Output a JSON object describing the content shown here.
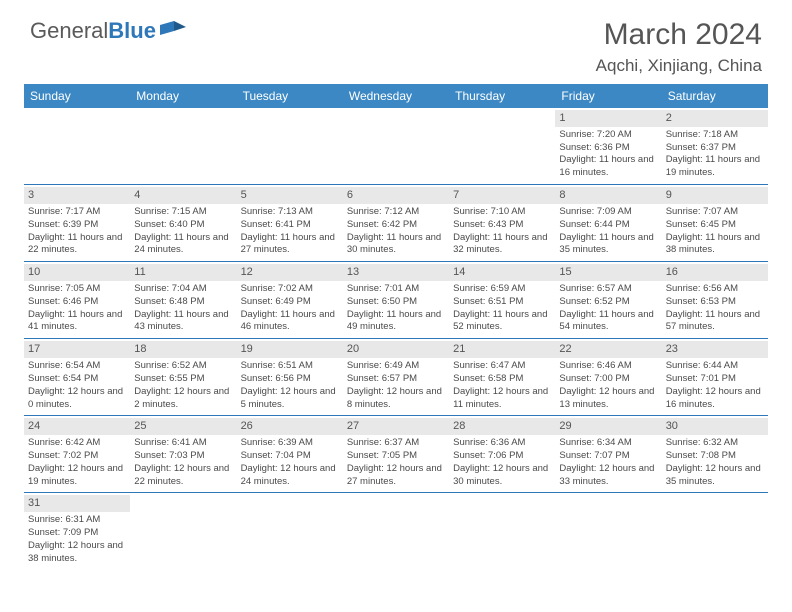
{
  "logo": {
    "part1": "General",
    "part2": "Blue"
  },
  "title": "March 2024",
  "location": "Aqchi, Xinjiang, China",
  "colors": {
    "header_bg": "#3b88c4",
    "header_text": "#ffffff",
    "rule": "#2e77b8",
    "daynum_bg": "#e8e8e8",
    "text": "#4a4a4a",
    "title_text": "#555555"
  },
  "day_names": [
    "Sunday",
    "Monday",
    "Tuesday",
    "Wednesday",
    "Thursday",
    "Friday",
    "Saturday"
  ],
  "weeks": [
    [
      {
        "empty": true
      },
      {
        "empty": true
      },
      {
        "empty": true
      },
      {
        "empty": true
      },
      {
        "empty": true
      },
      {
        "n": "1",
        "sr": "Sunrise: 7:20 AM",
        "ss": "Sunset: 6:36 PM",
        "dl": "Daylight: 11 hours and 16 minutes."
      },
      {
        "n": "2",
        "sr": "Sunrise: 7:18 AM",
        "ss": "Sunset: 6:37 PM",
        "dl": "Daylight: 11 hours and 19 minutes."
      }
    ],
    [
      {
        "n": "3",
        "sr": "Sunrise: 7:17 AM",
        "ss": "Sunset: 6:39 PM",
        "dl": "Daylight: 11 hours and 22 minutes."
      },
      {
        "n": "4",
        "sr": "Sunrise: 7:15 AM",
        "ss": "Sunset: 6:40 PM",
        "dl": "Daylight: 11 hours and 24 minutes."
      },
      {
        "n": "5",
        "sr": "Sunrise: 7:13 AM",
        "ss": "Sunset: 6:41 PM",
        "dl": "Daylight: 11 hours and 27 minutes."
      },
      {
        "n": "6",
        "sr": "Sunrise: 7:12 AM",
        "ss": "Sunset: 6:42 PM",
        "dl": "Daylight: 11 hours and 30 minutes."
      },
      {
        "n": "7",
        "sr": "Sunrise: 7:10 AM",
        "ss": "Sunset: 6:43 PM",
        "dl": "Daylight: 11 hours and 32 minutes."
      },
      {
        "n": "8",
        "sr": "Sunrise: 7:09 AM",
        "ss": "Sunset: 6:44 PM",
        "dl": "Daylight: 11 hours and 35 minutes."
      },
      {
        "n": "9",
        "sr": "Sunrise: 7:07 AM",
        "ss": "Sunset: 6:45 PM",
        "dl": "Daylight: 11 hours and 38 minutes."
      }
    ],
    [
      {
        "n": "10",
        "sr": "Sunrise: 7:05 AM",
        "ss": "Sunset: 6:46 PM",
        "dl": "Daylight: 11 hours and 41 minutes."
      },
      {
        "n": "11",
        "sr": "Sunrise: 7:04 AM",
        "ss": "Sunset: 6:48 PM",
        "dl": "Daylight: 11 hours and 43 minutes."
      },
      {
        "n": "12",
        "sr": "Sunrise: 7:02 AM",
        "ss": "Sunset: 6:49 PM",
        "dl": "Daylight: 11 hours and 46 minutes."
      },
      {
        "n": "13",
        "sr": "Sunrise: 7:01 AM",
        "ss": "Sunset: 6:50 PM",
        "dl": "Daylight: 11 hours and 49 minutes."
      },
      {
        "n": "14",
        "sr": "Sunrise: 6:59 AM",
        "ss": "Sunset: 6:51 PM",
        "dl": "Daylight: 11 hours and 52 minutes."
      },
      {
        "n": "15",
        "sr": "Sunrise: 6:57 AM",
        "ss": "Sunset: 6:52 PM",
        "dl": "Daylight: 11 hours and 54 minutes."
      },
      {
        "n": "16",
        "sr": "Sunrise: 6:56 AM",
        "ss": "Sunset: 6:53 PM",
        "dl": "Daylight: 11 hours and 57 minutes."
      }
    ],
    [
      {
        "n": "17",
        "sr": "Sunrise: 6:54 AM",
        "ss": "Sunset: 6:54 PM",
        "dl": "Daylight: 12 hours and 0 minutes."
      },
      {
        "n": "18",
        "sr": "Sunrise: 6:52 AM",
        "ss": "Sunset: 6:55 PM",
        "dl": "Daylight: 12 hours and 2 minutes."
      },
      {
        "n": "19",
        "sr": "Sunrise: 6:51 AM",
        "ss": "Sunset: 6:56 PM",
        "dl": "Daylight: 12 hours and 5 minutes."
      },
      {
        "n": "20",
        "sr": "Sunrise: 6:49 AM",
        "ss": "Sunset: 6:57 PM",
        "dl": "Daylight: 12 hours and 8 minutes."
      },
      {
        "n": "21",
        "sr": "Sunrise: 6:47 AM",
        "ss": "Sunset: 6:58 PM",
        "dl": "Daylight: 12 hours and 11 minutes."
      },
      {
        "n": "22",
        "sr": "Sunrise: 6:46 AM",
        "ss": "Sunset: 7:00 PM",
        "dl": "Daylight: 12 hours and 13 minutes."
      },
      {
        "n": "23",
        "sr": "Sunrise: 6:44 AM",
        "ss": "Sunset: 7:01 PM",
        "dl": "Daylight: 12 hours and 16 minutes."
      }
    ],
    [
      {
        "n": "24",
        "sr": "Sunrise: 6:42 AM",
        "ss": "Sunset: 7:02 PM",
        "dl": "Daylight: 12 hours and 19 minutes."
      },
      {
        "n": "25",
        "sr": "Sunrise: 6:41 AM",
        "ss": "Sunset: 7:03 PM",
        "dl": "Daylight: 12 hours and 22 minutes."
      },
      {
        "n": "26",
        "sr": "Sunrise: 6:39 AM",
        "ss": "Sunset: 7:04 PM",
        "dl": "Daylight: 12 hours and 24 minutes."
      },
      {
        "n": "27",
        "sr": "Sunrise: 6:37 AM",
        "ss": "Sunset: 7:05 PM",
        "dl": "Daylight: 12 hours and 27 minutes."
      },
      {
        "n": "28",
        "sr": "Sunrise: 6:36 AM",
        "ss": "Sunset: 7:06 PM",
        "dl": "Daylight: 12 hours and 30 minutes."
      },
      {
        "n": "29",
        "sr": "Sunrise: 6:34 AM",
        "ss": "Sunset: 7:07 PM",
        "dl": "Daylight: 12 hours and 33 minutes."
      },
      {
        "n": "30",
        "sr": "Sunrise: 6:32 AM",
        "ss": "Sunset: 7:08 PM",
        "dl": "Daylight: 12 hours and 35 minutes."
      }
    ],
    [
      {
        "n": "31",
        "sr": "Sunrise: 6:31 AM",
        "ss": "Sunset: 7:09 PM",
        "dl": "Daylight: 12 hours and 38 minutes."
      },
      {
        "empty": true
      },
      {
        "empty": true
      },
      {
        "empty": true
      },
      {
        "empty": true
      },
      {
        "empty": true
      },
      {
        "empty": true
      }
    ]
  ]
}
